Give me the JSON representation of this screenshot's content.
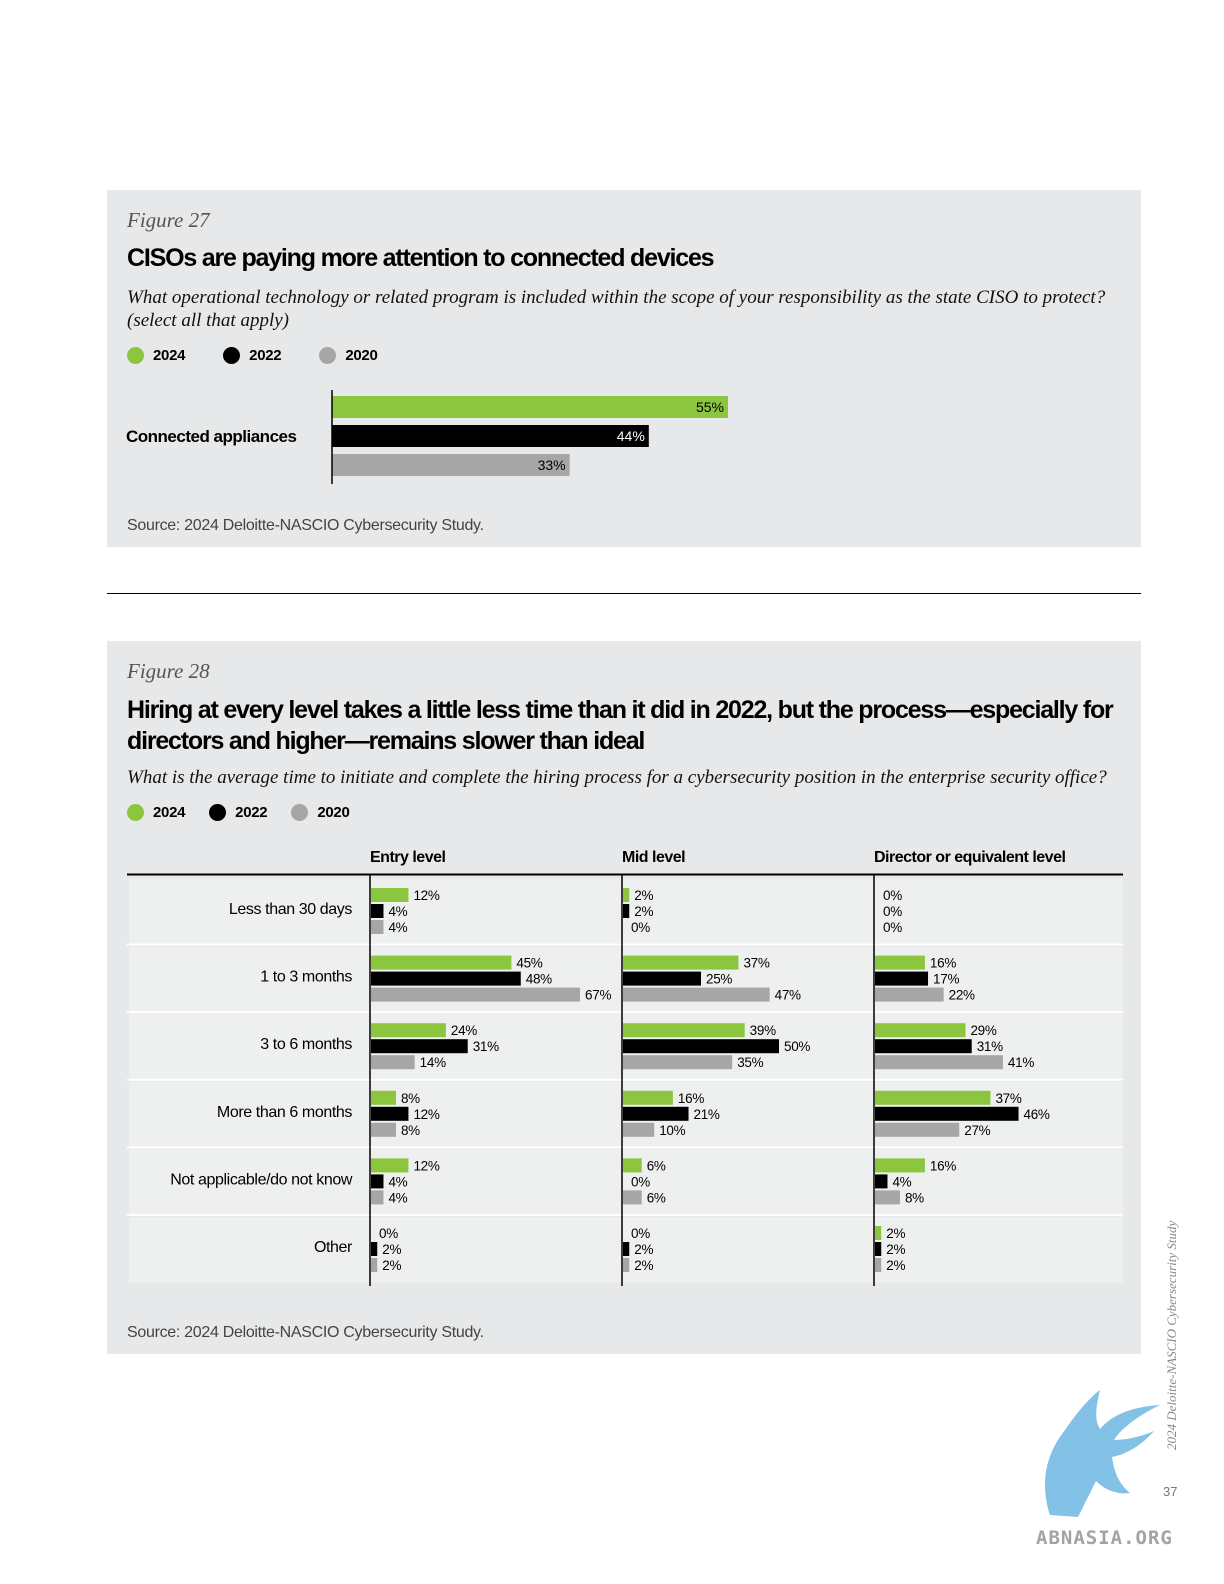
{
  "colors": {
    "c2024": "#8cc63f",
    "c2022": "#000000",
    "c2020": "#a6a6a6",
    "panel": "#e7e8e9"
  },
  "legend": [
    {
      "label": "2024",
      "color": "#8cc63f"
    },
    {
      "label": "2022",
      "color": "#000000"
    },
    {
      "label": "2020",
      "color": "#a6a6a6"
    }
  ],
  "fig27": {
    "label": "Figure 27",
    "title": "CISOs are paying more attention to connected devices",
    "subtitle": "What operational technology or related program is included within the scope of your responsibility as the state CISO to protect? (select all that apply)",
    "source": "Source: 2024 Deloitte-NASCIO Cybersecurity Study."
  },
  "fig28": {
    "label": "Figure 28",
    "title": "Hiring at every level takes a little less time than it did in 2022, but the process—especially for directors and higher—remains slower than ideal",
    "subtitle": "What is the average time to initiate and complete the hiring process for a cybersecurity position in the enterprise security office?",
    "source": "Source: 2024 Deloitte-NASCIO Cybersecurity Study."
  },
  "chart_data": [
    {
      "type": "bar",
      "orientation": "horizontal",
      "categories": [
        "Connected appliances"
      ],
      "series": [
        {
          "name": "2024",
          "values": [
            55
          ]
        },
        {
          "name": "2022",
          "values": [
            44
          ]
        },
        {
          "name": "2020",
          "values": [
            33
          ]
        }
      ],
      "value_format": "percent",
      "xlim": [
        0,
        100
      ],
      "legend_position": "top-left",
      "grid": false
    },
    {
      "type": "bar",
      "orientation": "horizontal",
      "panels": [
        "Entry level",
        "Mid level",
        "Director or equivalent level"
      ],
      "categories": [
        "Less than 30 days",
        "1 to 3 months",
        "3 to 6 months",
        "More than 6 months",
        "Not applicable/do not know",
        "Other"
      ],
      "series": [
        {
          "name": "2024",
          "values": [
            [
              12,
              45,
              24,
              8,
              12,
              0
            ],
            [
              2,
              37,
              39,
              16,
              6,
              0
            ],
            [
              0,
              16,
              29,
              37,
              16,
              2
            ]
          ]
        },
        {
          "name": "2022",
          "values": [
            [
              4,
              48,
              31,
              12,
              4,
              2
            ],
            [
              2,
              25,
              50,
              21,
              0,
              2
            ],
            [
              0,
              17,
              31,
              46,
              4,
              2
            ]
          ]
        },
        {
          "name": "2020",
          "values": [
            [
              4,
              67,
              14,
              8,
              4,
              2
            ],
            [
              0,
              47,
              35,
              10,
              6,
              2
            ],
            [
              0,
              22,
              41,
              27,
              8,
              2
            ]
          ]
        }
      ],
      "value_format": "percent",
      "xlim": [
        0,
        80
      ],
      "legend_position": "top-left",
      "grid": false
    }
  ],
  "sidebar": {
    "text": "2024 Deloitte-NASCIO Cybersecurity Study",
    "page": "37"
  },
  "watermark": {
    "text": "ABNASIA.ORG"
  }
}
